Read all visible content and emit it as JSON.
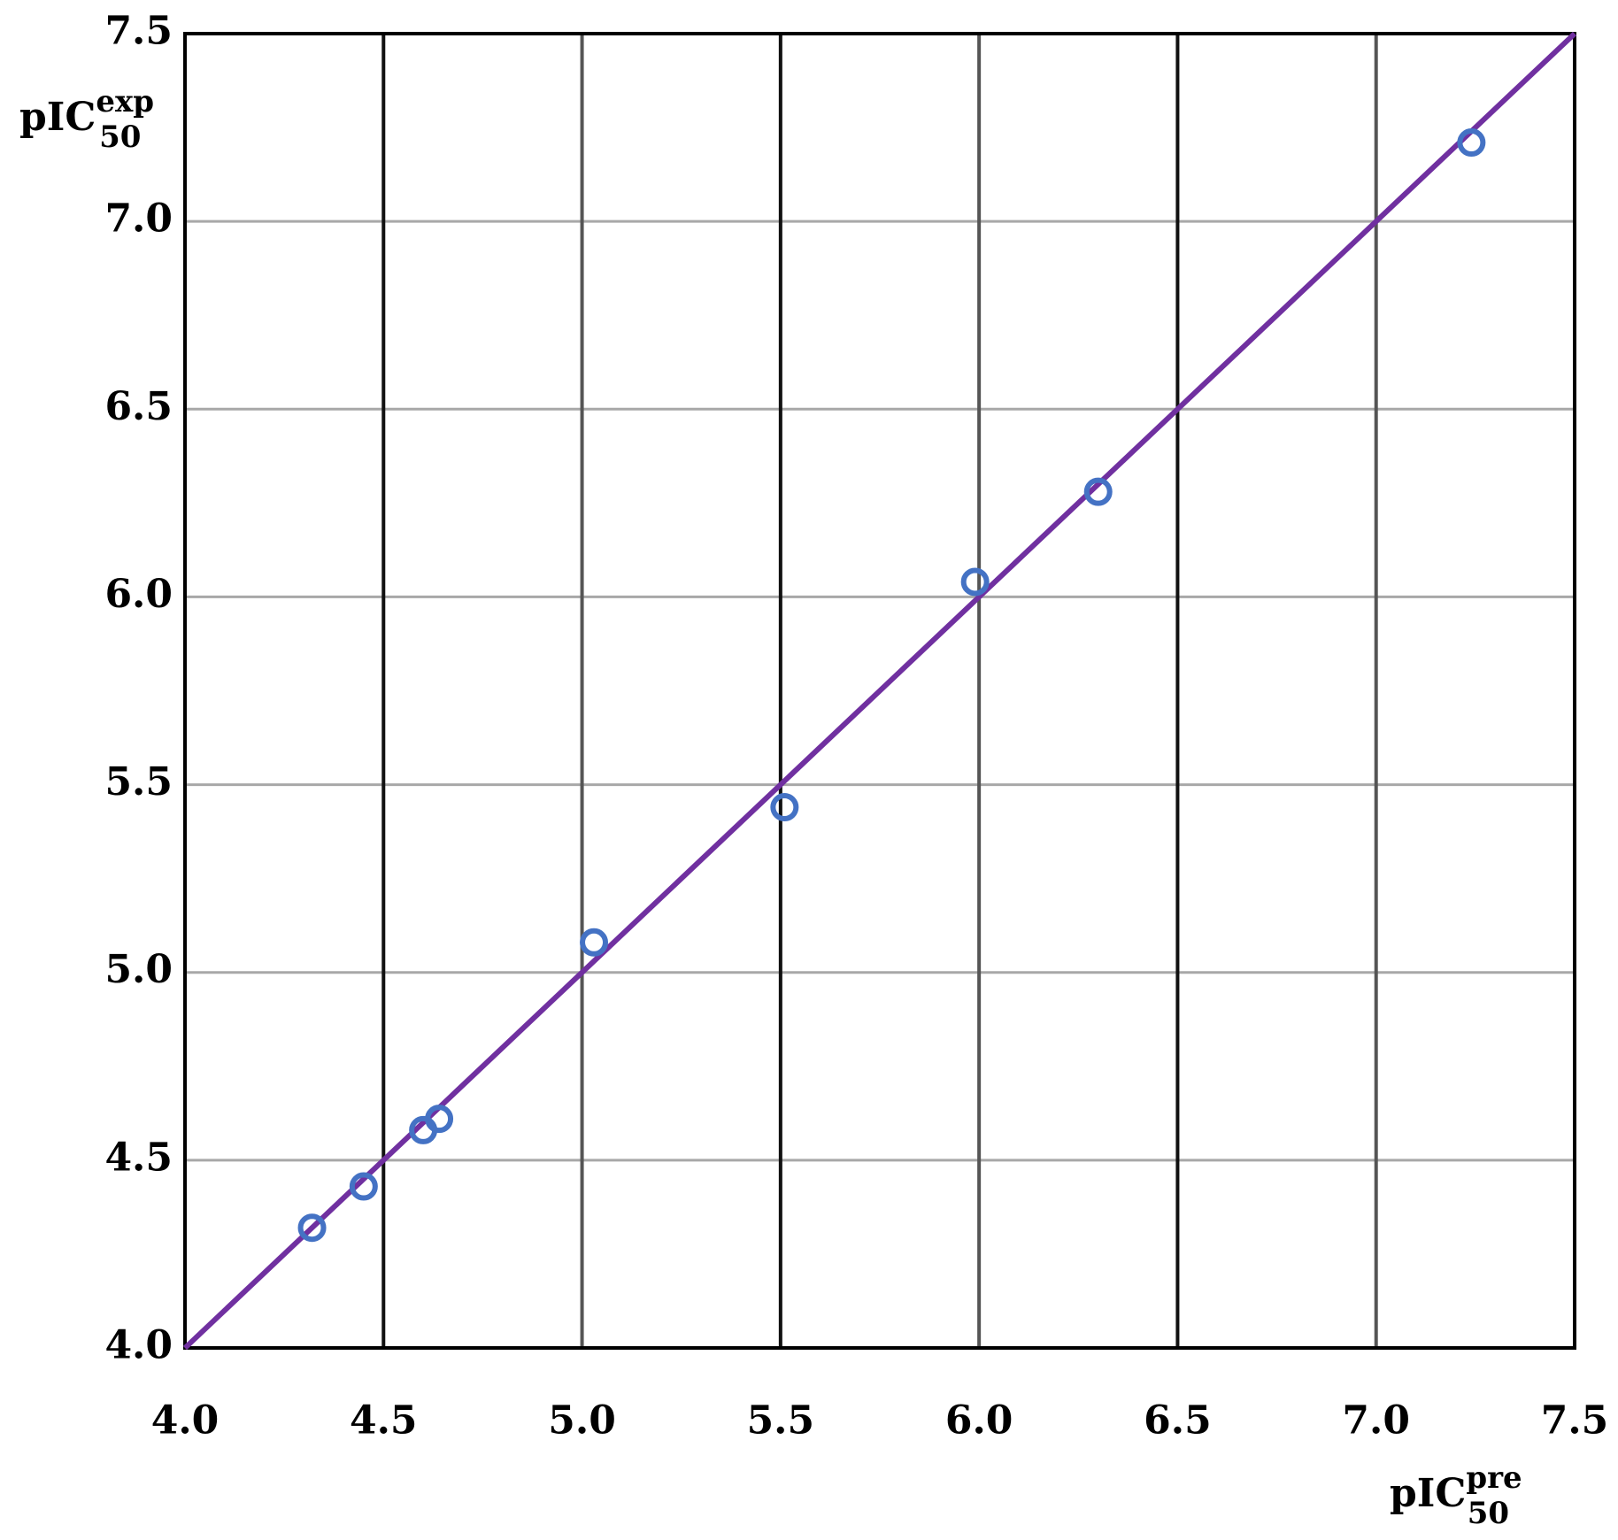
{
  "chart_data": {
    "type": "scatter",
    "x_label": {
      "base": "pIC",
      "sub": "50",
      "sup": "pre"
    },
    "y_label": {
      "base": "pIC",
      "sub": "50",
      "sup": "exp"
    },
    "points": {
      "color": "#4472c4",
      "x": [
        4.32,
        4.45,
        4.6,
        4.64,
        5.03,
        5.51,
        5.99,
        6.3,
        7.24
      ],
      "values": [
        4.32,
        4.43,
        4.58,
        4.61,
        5.08,
        5.44,
        6.04,
        6.28,
        7.21
      ]
    },
    "fit_line": {
      "color": "#7030a0",
      "x": [
        4.0,
        7.5
      ],
      "values": [
        4.0,
        7.5
      ]
    },
    "xlim": [
      4.0,
      7.5
    ],
    "ylim": [
      4.0,
      7.5
    ],
    "xticks": [
      {
        "value": 4,
        "label": "4.0"
      },
      4.5,
      {
        "value": 5,
        "label": "5.0"
      },
      5.5,
      {
        "value": 6,
        "label": "6.0"
      },
      6.5,
      {
        "value": 7,
        "label": "7.0"
      },
      7.5
    ],
    "yticks": [
      {
        "value": 4,
        "label": "4.0"
      },
      4.5,
      {
        "value": 5,
        "label": "5.0"
      },
      5.5,
      {
        "value": 6,
        "label": "6.0"
      },
      6.5,
      {
        "value": 7,
        "label": "7.0"
      },
      7.5
    ],
    "grid": true
  }
}
